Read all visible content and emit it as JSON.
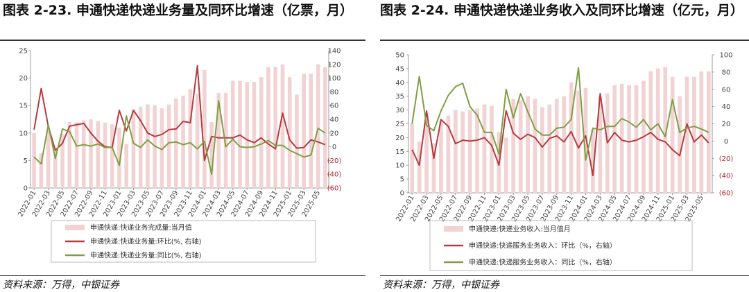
{
  "left_title": "图表 2-23. 申通快递快递业务量及同环比增速（亿票，月）",
  "right_title": "图表 2-24. 申通快递快递业务收入及同环比增速（亿元，月）",
  "left_source": "资料来源：万得，中银证券",
  "right_source": "资料来源：万得，中银证券",
  "colors": {
    "bar": "#f2d3d3",
    "mom": "#b63a3e",
    "yoy": "#7e9e46",
    "axis_red": "#b3262a"
  },
  "chart_data": [
    {
      "type": "bar",
      "x": [
        "2022-01",
        "2022-02",
        "2022-03",
        "2022-04",
        "2022-05",
        "2022-06",
        "2022-07",
        "2022-08",
        "2022-09",
        "2022-10",
        "2022-11",
        "2022-12",
        "2023-01",
        "2023-02",
        "2023-03",
        "2023-04",
        "2023-05",
        "2023-06",
        "2023-07",
        "2023-08",
        "2023-09",
        "2023-10",
        "2023-11",
        "2023-12",
        "2024-01",
        "2024-02",
        "2024-03",
        "2024-04",
        "2024-05",
        "2024-06",
        "2024-07",
        "2024-08",
        "2024-09",
        "2024-10",
        "2024-11",
        "2024-12",
        "2025-01",
        "2025-02",
        "2025-03",
        "2025-04",
        "2025-05",
        "2025-06"
      ],
      "xtick_labels": [
        "2022-01",
        "2022-03",
        "2022-05",
        "2022-07",
        "2022-09",
        "2022-11",
        "2023-01",
        "2023-03",
        "2023-05",
        "2023-07",
        "2023-09",
        "2023-11",
        "2024-01",
        "2024-03",
        "2024-05",
        "2024-07",
        "2024-09",
        "2024-11",
        "2025-01",
        "2025-03",
        "2025-05"
      ],
      "y_left_ticks": [
        0,
        5,
        10,
        15,
        20,
        25
      ],
      "y_left_range": [
        0,
        25
      ],
      "y_right_ticks": [
        "(60)",
        "(40)",
        "(20)",
        "0",
        "20",
        "40",
        "60",
        "80",
        "100",
        "120",
        "140"
      ],
      "y_right_range": [
        -60,
        140
      ],
      "series": [
        {
          "name": "申通快递:快递业务完成量:当月值",
          "axis": "left",
          "type": "bar",
          "values": [
            10.0,
            6.3,
            10.5,
            7.0,
            9.7,
            12.0,
            12.0,
            12.3,
            12.5,
            12.2,
            11.9,
            11.6,
            11.0,
            8.0,
            14.3,
            14.8,
            15.2,
            15.1,
            14.5,
            15.2,
            16.3,
            16.8,
            18.0,
            17.2,
            21.5,
            12.0,
            17.3,
            17.3,
            19.5,
            19.5,
            19.3,
            19.3,
            20.2,
            22.0,
            22.0,
            22.5,
            20.2,
            17.0,
            20.8,
            20.8,
            22.5,
            22.0
          ]
        },
        {
          "name": "申通快递:快递业务量:环比(%, 右轴)",
          "axis": "right",
          "type": "line",
          "values": [
            25,
            85,
            30,
            -5,
            5,
            30,
            32,
            34,
            20,
            8,
            0,
            -1,
            53,
            23,
            53,
            38,
            20,
            15,
            18,
            25,
            26,
            37,
            35,
            118,
            -20,
            15,
            13,
            13,
            13,
            17,
            10,
            6,
            13,
            4,
            -3,
            49,
            10,
            -2,
            -1,
            10,
            7,
            3
          ]
        },
        {
          "name": "申通快递:快递业务量:同比(%, 右轴)",
          "axis": "right",
          "type": "line",
          "values": [
            -15,
            -25,
            32,
            -17,
            26,
            22,
            1,
            3,
            1,
            4,
            -1,
            -1,
            -27,
            45,
            5,
            -1,
            10,
            1,
            -4,
            6,
            7,
            3,
            6,
            -3,
            8,
            -40,
            67,
            0,
            11,
            0,
            -1,
            0,
            4,
            9,
            2,
            2,
            -5,
            -10,
            -15,
            -12,
            27,
            20
          ]
        }
      ]
    },
    {
      "type": "bar",
      "x": [
        "2022-01",
        "2022-02",
        "2022-03",
        "2022-04",
        "2022-05",
        "2022-06",
        "2022-07",
        "2022-08",
        "2022-09",
        "2022-10",
        "2022-11",
        "2022-12",
        "2023-01",
        "2023-02",
        "2023-03",
        "2023-04",
        "2023-05",
        "2023-06",
        "2023-07",
        "2023-08",
        "2023-09",
        "2023-10",
        "2023-11",
        "2023-12",
        "2024-01",
        "2024-02",
        "2024-03",
        "2024-04",
        "2024-05",
        "2024-06",
        "2024-07",
        "2024-08",
        "2024-09",
        "2024-10",
        "2024-11",
        "2024-12",
        "2025-01",
        "2025-02",
        "2025-03",
        "2025-04",
        "2025-05",
        "2025-06"
      ],
      "xtick_labels": [
        "2022-01",
        "2022-03",
        "2022-05",
        "2022-07",
        "2022-09",
        "2022-11",
        "2023-01",
        "2023-03",
        "2023-05",
        "2023-07",
        "2023-09",
        "2023-11",
        "2024-01",
        "2024-03",
        "2024-05",
        "2024-07",
        "2024-09",
        "2024-11",
        "2025-01",
        "2025-03",
        "2025-05"
      ],
      "y_left_ticks": [
        0,
        5,
        10,
        15,
        20,
        25,
        30,
        35,
        40,
        45,
        50
      ],
      "y_left_range": [
        0,
        50
      ],
      "y_right_ticks": [
        "(60)",
        "(40)",
        "(20)",
        "0",
        "20",
        "40",
        "60",
        "80",
        "100"
      ],
      "y_right_range": [
        -60,
        100
      ],
      "series": [
        {
          "name": "申通快递:快递业务收入:当月值月",
          "axis": "left",
          "type": "bar",
          "values": [
            25.0,
            18.5,
            28.0,
            18.0,
            26.0,
            28.0,
            30.0,
            29.5,
            30.0,
            30.5,
            32.0,
            31.5,
            22.0,
            20.0,
            34.0,
            33.5,
            35.0,
            34.0,
            31.0,
            32.0,
            34.0,
            35.0,
            40.0,
            37.0,
            38.0,
            23.0,
            35.0,
            36.0,
            39.0,
            39.5,
            39.0,
            39.0,
            40.5,
            44.0,
            45.0,
            45.5,
            42.0,
            35.0,
            42.0,
            42.0,
            44.0,
            44.0
          ]
        },
        {
          "name": "申通快递:快递服务业务收入：环比（%，右轴）",
          "axis": "right",
          "type": "line",
          "values": [
            -10,
            -28,
            35,
            -20,
            25,
            17,
            -3,
            1,
            0,
            1,
            4,
            -5,
            -28,
            35,
            9,
            2,
            8,
            4,
            -7,
            3,
            6,
            -1,
            11,
            -8,
            6,
            -40,
            55,
            -2,
            10,
            1,
            -1,
            1,
            5,
            10,
            2,
            -1,
            -10,
            -17,
            20,
            -1,
            7,
            -2
          ]
        },
        {
          "name": "申通快递:快递服务业务收入：同比（%，右轴）",
          "axis": "right",
          "type": "line",
          "values": [
            20,
            75,
            18,
            12,
            35,
            53,
            63,
            67,
            40,
            30,
            10,
            10,
            -15,
            60,
            27,
            55,
            34,
            14,
            7,
            7,
            15,
            16,
            25,
            85,
            -22,
            15,
            13,
            17,
            17,
            26,
            22,
            16,
            25,
            13,
            20,
            5,
            48,
            10,
            15,
            17,
            14,
            10
          ]
        }
      ]
    }
  ],
  "legends": {
    "left": [
      {
        "label": "申通快递:快递业务完成量:当月值",
        "kind": "bar",
        "color": "#f2d3d3"
      },
      {
        "label": "申通快递:快递业务量:环比(%, 右轴)",
        "kind": "line",
        "color": "#b63a3e"
      },
      {
        "label": "申通快递:快递业务量:同比(%, 右轴)",
        "kind": "line",
        "color": "#7e9e46"
      }
    ],
    "right": [
      {
        "label": "申通快递:快递业务收入:当月值月",
        "kind": "bar",
        "color": "#f2d3d3"
      },
      {
        "label": "申通快递:快递服务业务收入：环比（%，右轴）",
        "kind": "line",
        "color": "#b63a3e"
      },
      {
        "label": "申通快递:快递服务业务收入：同比（%，右轴）",
        "kind": "line",
        "color": "#7e9e46"
      }
    ]
  }
}
